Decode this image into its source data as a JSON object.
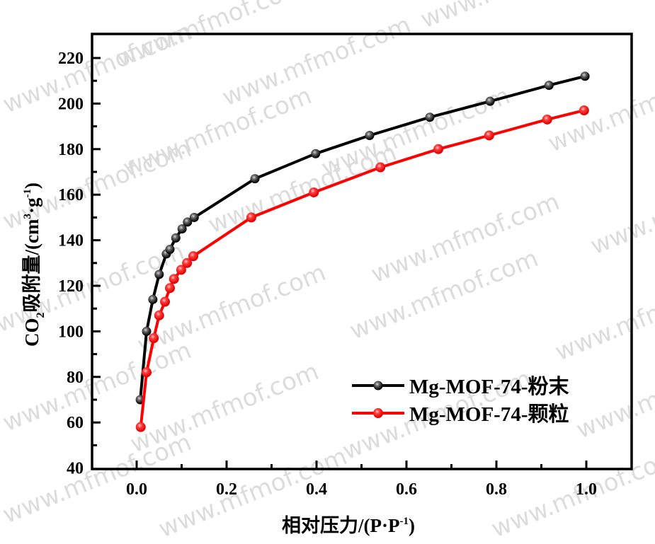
{
  "chart_data": {
    "type": "line",
    "title": "",
    "xlabel": "相对压力/(P·P⁻¹)",
    "ylabel": "CO₂吸附量/(cm³·g⁻¹)",
    "xlim": [
      -0.1,
      1.1
    ],
    "ylim": [
      40,
      230
    ],
    "x_ticks": [
      "0.0",
      "0.2",
      "0.4",
      "0.6",
      "0.8",
      "1.0"
    ],
    "y_ticks": [
      "40",
      "60",
      "80",
      "100",
      "120",
      "140",
      "160",
      "180",
      "200",
      "220"
    ],
    "grid": false,
    "legend_position": "lower right",
    "series": [
      {
        "name": "Mg-MOF-74-粉末",
        "color": "#000000",
        "marker_color": "#000000",
        "x": [
          0.008,
          0.022,
          0.036,
          0.05,
          0.066,
          0.074,
          0.087,
          0.101,
          0.113,
          0.128,
          0.263,
          0.398,
          0.518,
          0.652,
          0.786,
          0.917,
          0.997
        ],
        "y": [
          70,
          100,
          114,
          125,
          134,
          136,
          141,
          145,
          148,
          150,
          167,
          178,
          186,
          194,
          201,
          208,
          212
        ]
      },
      {
        "name": "Mg-MOF-74-颗粒",
        "color": "#ff0000",
        "marker_color": "#ff1a1a",
        "x": [
          0.009,
          0.022,
          0.038,
          0.05,
          0.063,
          0.074,
          0.083,
          0.099,
          0.112,
          0.126,
          0.255,
          0.394,
          0.542,
          0.671,
          0.784,
          0.913,
          0.995
        ],
        "y": [
          58,
          82,
          97,
          107,
          113,
          119,
          123,
          127,
          130,
          133,
          150,
          161,
          172,
          180,
          186,
          193,
          197
        ]
      }
    ]
  },
  "axes": {
    "x_title_main": "相对压力/(P·P",
    "x_title_sup": "-1",
    "x_title_end": ")",
    "y_title_co": "CO",
    "y_title_sub": "2",
    "y_title_mid": "吸附量/(cm",
    "y_title_sup3": "3",
    "y_title_dot": "·g",
    "y_title_sup1": "-1",
    "y_title_end": ")"
  },
  "legend": {
    "items": [
      {
        "label": "Mg-MOF-74-粉末",
        "color": "#000000"
      },
      {
        "label": "Mg-MOF-74-颗粒",
        "color": "#ff0000"
      }
    ]
  },
  "watermark": "www.mfmof.com"
}
